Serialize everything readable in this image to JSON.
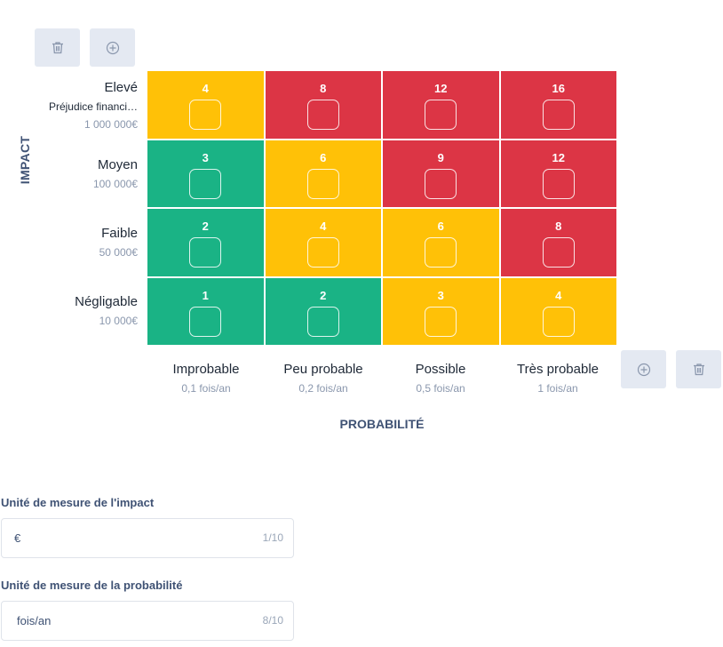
{
  "axes": {
    "impact": "IMPACT",
    "probability": "PROBABILITÉ"
  },
  "rows": [
    {
      "name": "Elevé",
      "description": "Préjudice financi…",
      "value": "1 000 000€"
    },
    {
      "name": "Moyen",
      "value": "100 000€"
    },
    {
      "name": "Faible",
      "value": "50 000€"
    },
    {
      "name": "Négligable",
      "value": "10 000€"
    }
  ],
  "columns": [
    {
      "name": "Improbable",
      "value": "0,1 fois/an"
    },
    {
      "name": "Peu probable",
      "value": "0,2 fois/an"
    },
    {
      "name": "Possible",
      "value": "0,5 fois/an"
    },
    {
      "name": "Très probable",
      "value": "1 fois/an"
    }
  ],
  "matrix": [
    [
      {
        "score": "4",
        "level": "yellow"
      },
      {
        "score": "8",
        "level": "red"
      },
      {
        "score": "12",
        "level": "red"
      },
      {
        "score": "16",
        "level": "red"
      }
    ],
    [
      {
        "score": "3",
        "level": "green"
      },
      {
        "score": "6",
        "level": "yellow"
      },
      {
        "score": "9",
        "level": "red"
      },
      {
        "score": "12",
        "level": "red"
      }
    ],
    [
      {
        "score": "2",
        "level": "green"
      },
      {
        "score": "4",
        "level": "yellow"
      },
      {
        "score": "6",
        "level": "yellow"
      },
      {
        "score": "8",
        "level": "red"
      }
    ],
    [
      {
        "score": "1",
        "level": "green"
      },
      {
        "score": "2",
        "level": "green"
      },
      {
        "score": "3",
        "level": "yellow"
      },
      {
        "score": "4",
        "level": "yellow"
      }
    ]
  ],
  "colors": {
    "green": "#1ab385",
    "yellow": "#ffc107",
    "red": "#dc3545",
    "accent": "#3f5274"
  },
  "icons": {
    "delete": "trash-icon",
    "add": "plus-circle-icon"
  },
  "impact_unit": {
    "label": "Unité de mesure de l'impact",
    "value": "€",
    "counter": "1/10"
  },
  "probability_unit": {
    "label": "Unité de mesure de la probabilité",
    "value": "fois/an",
    "counter": "8/10"
  }
}
